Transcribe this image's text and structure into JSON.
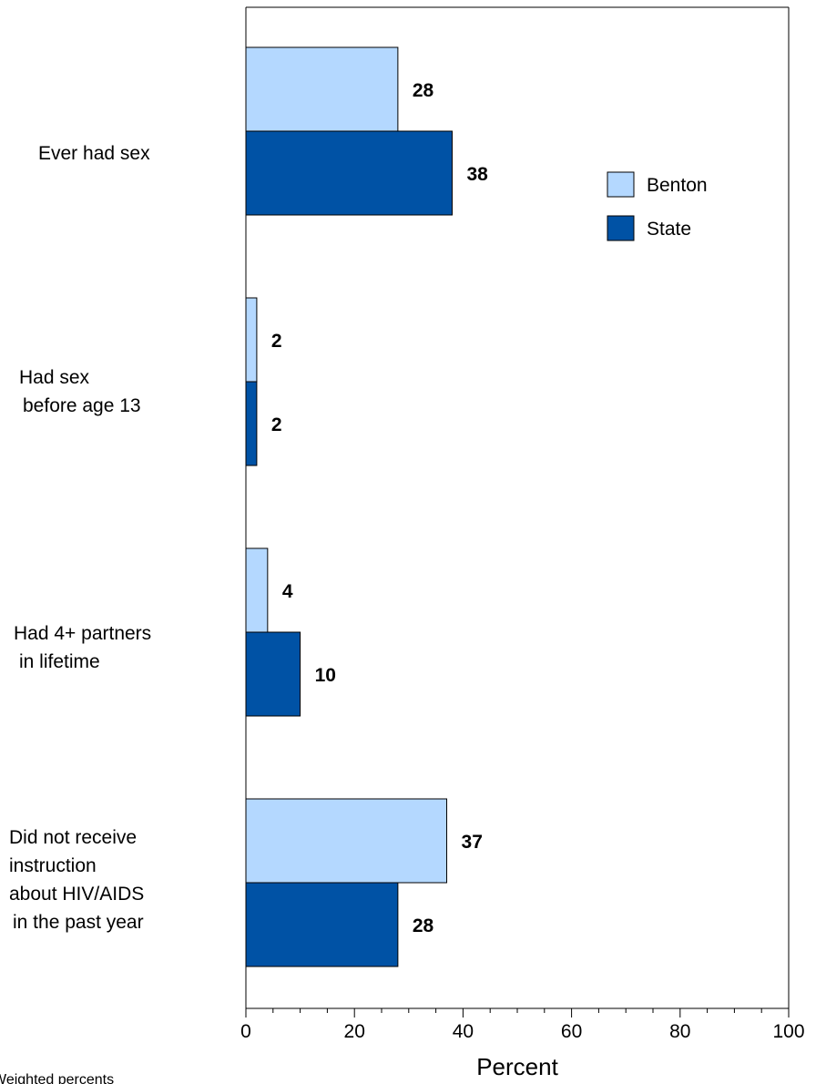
{
  "chart_data": {
    "type": "bar",
    "orientation": "horizontal",
    "categories": [
      [
        "Ever had sex"
      ],
      [
        "Had sex",
        "before age 13"
      ],
      [
        "Had 4+ partners",
        "in lifetime"
      ],
      [
        "Did not receive",
        "instruction",
        "about HIV/AIDS",
        "in the past year"
      ]
    ],
    "series": [
      {
        "name": "Benton",
        "values": [
          28,
          2,
          4,
          37
        ],
        "color": "#b4d8ff"
      },
      {
        "name": "State",
        "values": [
          38,
          2,
          10,
          28
        ],
        "color": "#0052a5"
      }
    ],
    "xlabel": "Percent",
    "xlim": [
      0,
      100
    ],
    "xticks": [
      0,
      20,
      40,
      60,
      80,
      100
    ],
    "legend_position": "top-right",
    "grid": false
  },
  "footnote": "Weighted percents"
}
